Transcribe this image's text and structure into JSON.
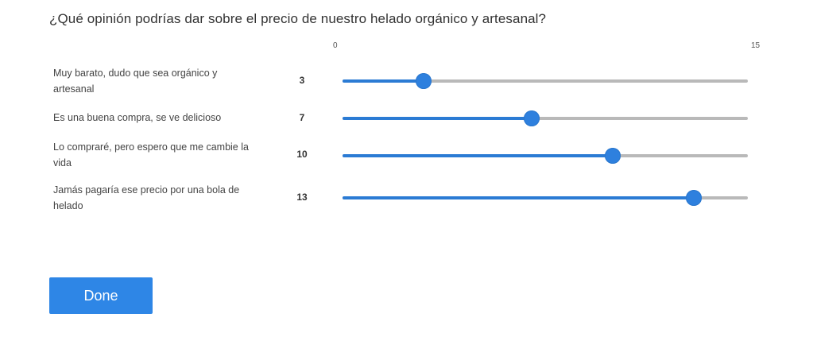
{
  "question": "¿Qué opinión podrías dar sobre el precio de nuestro helado orgánico y artesanal?",
  "scale": {
    "min": 0,
    "max": 15,
    "min_label": "0",
    "max_label": "15"
  },
  "rows": [
    {
      "label": "Muy barato, dudo que sea orgánico y artesanal",
      "value": 3,
      "value_label": "3"
    },
    {
      "label": "Es una buena compra, se ve delicioso",
      "value": 7,
      "value_label": "7"
    },
    {
      "label": "Lo compraré, pero espero que me cambie la vida",
      "value": 10,
      "value_label": "10"
    },
    {
      "label": "Jamás pagaría ese precio por una bola de helado",
      "value": 13,
      "value_label": "13"
    }
  ],
  "done_label": "Done",
  "colors": {
    "accent": "#2e80de",
    "track": "#b9b9b9",
    "button": "#2e86e6"
  }
}
